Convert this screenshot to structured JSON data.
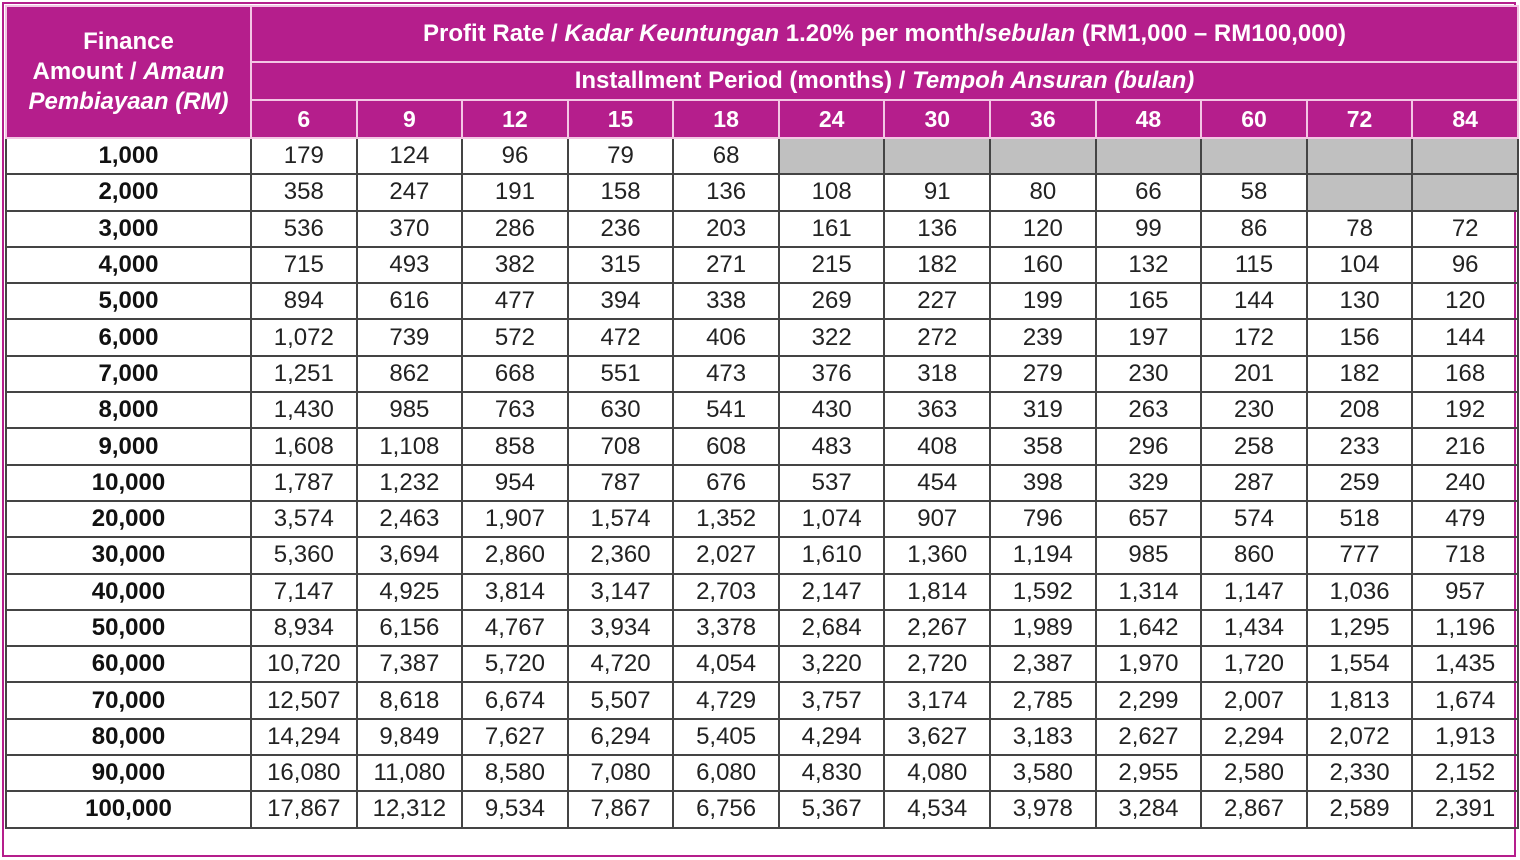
{
  "header": {
    "amount_label_1": "Finance",
    "amount_label_2": "Amount / ",
    "amount_label_2_italic": "Amaun",
    "amount_label_3_italic": "Pembiayaan (RM)",
    "rate_prefix": "Profit Rate / ",
    "rate_italic": "Kadar Keuntungan",
    "rate_mid": " 1.20% per month/",
    "rate_italic_2": "sebulan",
    "rate_suffix": " (RM1,000 – RM100,000)",
    "period_prefix": "Installment Period (months) / ",
    "period_italic": "Tempoh Ansuran (bulan)"
  },
  "colors": {
    "header_bg": "#b51e8c",
    "unavailable_cell": "#c0c0c0"
  },
  "periods": [
    "6",
    "9",
    "12",
    "15",
    "18",
    "24",
    "30",
    "36",
    "48",
    "60",
    "72",
    "84"
  ],
  "rows": [
    {
      "amount": "1,000",
      "values": [
        "179",
        "124",
        "96",
        "79",
        "68",
        null,
        null,
        null,
        null,
        null,
        null,
        null
      ]
    },
    {
      "amount": "2,000",
      "values": [
        "358",
        "247",
        "191",
        "158",
        "136",
        "108",
        "91",
        "80",
        "66",
        "58",
        null,
        null
      ]
    },
    {
      "amount": "3,000",
      "values": [
        "536",
        "370",
        "286",
        "236",
        "203",
        "161",
        "136",
        "120",
        "99",
        "86",
        "78",
        "72"
      ]
    },
    {
      "amount": "4,000",
      "values": [
        "715",
        "493",
        "382",
        "315",
        "271",
        "215",
        "182",
        "160",
        "132",
        "115",
        "104",
        "96"
      ]
    },
    {
      "amount": "5,000",
      "values": [
        "894",
        "616",
        "477",
        "394",
        "338",
        "269",
        "227",
        "199",
        "165",
        "144",
        "130",
        "120"
      ]
    },
    {
      "amount": "6,000",
      "values": [
        "1,072",
        "739",
        "572",
        "472",
        "406",
        "322",
        "272",
        "239",
        "197",
        "172",
        "156",
        "144"
      ]
    },
    {
      "amount": "7,000",
      "values": [
        "1,251",
        "862",
        "668",
        "551",
        "473",
        "376",
        "318",
        "279",
        "230",
        "201",
        "182",
        "168"
      ]
    },
    {
      "amount": "8,000",
      "values": [
        "1,430",
        "985",
        "763",
        "630",
        "541",
        "430",
        "363",
        "319",
        "263",
        "230",
        "208",
        "192"
      ]
    },
    {
      "amount": "9,000",
      "values": [
        "1,608",
        "1,108",
        "858",
        "708",
        "608",
        "483",
        "408",
        "358",
        "296",
        "258",
        "233",
        "216"
      ]
    },
    {
      "amount": "10,000",
      "values": [
        "1,787",
        "1,232",
        "954",
        "787",
        "676",
        "537",
        "454",
        "398",
        "329",
        "287",
        "259",
        "240"
      ]
    },
    {
      "amount": "20,000",
      "values": [
        "3,574",
        "2,463",
        "1,907",
        "1,574",
        "1,352",
        "1,074",
        "907",
        "796",
        "657",
        "574",
        "518",
        "479"
      ]
    },
    {
      "amount": "30,000",
      "values": [
        "5,360",
        "3,694",
        "2,860",
        "2,360",
        "2,027",
        "1,610",
        "1,360",
        "1,194",
        "985",
        "860",
        "777",
        "718"
      ]
    },
    {
      "amount": "40,000",
      "values": [
        "7,147",
        "4,925",
        "3,814",
        "3,147",
        "2,703",
        "2,147",
        "1,814",
        "1,592",
        "1,314",
        "1,147",
        "1,036",
        "957"
      ]
    },
    {
      "amount": "50,000",
      "values": [
        "8,934",
        "6,156",
        "4,767",
        "3,934",
        "3,378",
        "2,684",
        "2,267",
        "1,989",
        "1,642",
        "1,434",
        "1,295",
        "1,196"
      ]
    },
    {
      "amount": "60,000",
      "values": [
        "10,720",
        "7,387",
        "5,720",
        "4,720",
        "4,054",
        "3,220",
        "2,720",
        "2,387",
        "1,970",
        "1,720",
        "1,554",
        "1,435"
      ]
    },
    {
      "amount": "70,000",
      "values": [
        "12,507",
        "8,618",
        "6,674",
        "5,507",
        "4,729",
        "3,757",
        "3,174",
        "2,785",
        "2,299",
        "2,007",
        "1,813",
        "1,674"
      ]
    },
    {
      "amount": "80,000",
      "values": [
        "14,294",
        "9,849",
        "7,627",
        "6,294",
        "5,405",
        "4,294",
        "3,627",
        "3,183",
        "2,627",
        "2,294",
        "2,072",
        "1,913"
      ]
    },
    {
      "amount": "90,000",
      "values": [
        "16,080",
        "11,080",
        "8,580",
        "7,080",
        "6,080",
        "4,830",
        "4,080",
        "3,580",
        "2,955",
        "2,580",
        "2,330",
        "2,152"
      ]
    },
    {
      "amount": "100,000",
      "values": [
        "17,867",
        "12,312",
        "9,534",
        "7,867",
        "6,756",
        "5,367",
        "4,534",
        "3,978",
        "3,284",
        "2,867",
        "2,589",
        "2,391"
      ]
    }
  ]
}
